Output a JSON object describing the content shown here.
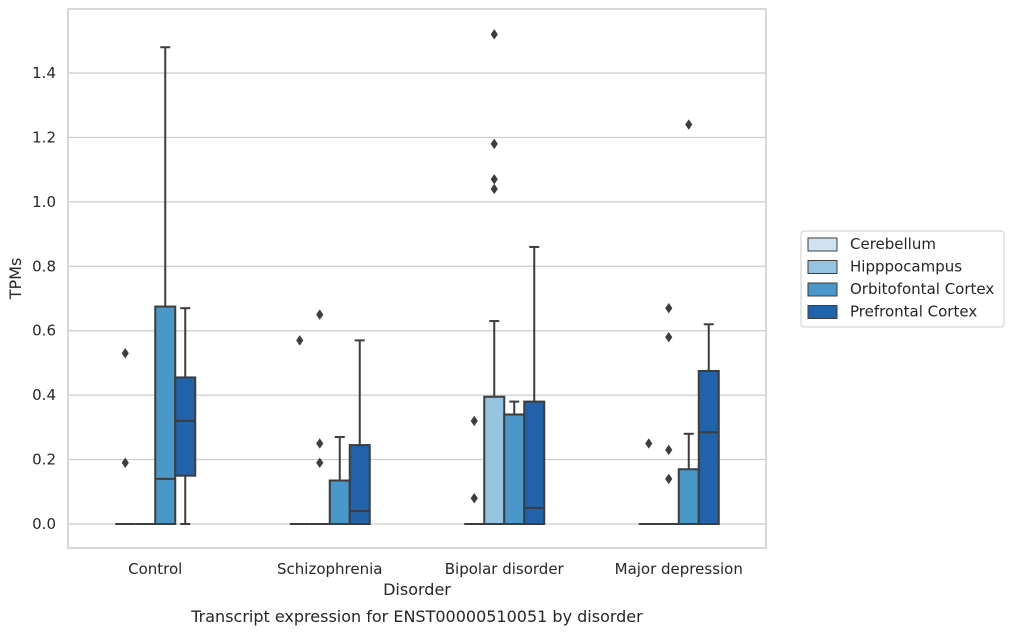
{
  "chart_data": {
    "type": "box",
    "title": "",
    "caption": "Transcript expression for ENST00000510051 by disorder",
    "xlabel": "Disorder",
    "ylabel": "TPMs",
    "ylim": [
      -0.07,
      1.58
    ],
    "yticks": [
      "0.0",
      "0.2",
      "0.4",
      "0.6",
      "0.8",
      "1.0",
      "1.2",
      "1.4"
    ],
    "grid": "horizontal",
    "legend_position": "right",
    "categories": [
      "Control",
      "Schizophrenia",
      "Bipolar disorder",
      "Major depression"
    ],
    "series": [
      {
        "name": "Cerebellum",
        "color": "#d0e1f2",
        "boxes": [
          {
            "q1": 0,
            "median": 0,
            "q3": 0,
            "whislo": 0,
            "whishi": 0,
            "fliers": []
          },
          {
            "q1": 0,
            "median": 0,
            "q3": 0,
            "whislo": 0,
            "whishi": 0,
            "fliers": []
          },
          {
            "q1": 0,
            "median": 0,
            "q3": 0,
            "whislo": 0,
            "whishi": 0,
            "fliers": []
          },
          {
            "q1": 0,
            "median": 0,
            "q3": 0,
            "whislo": 0,
            "whishi": 0,
            "fliers": []
          }
        ]
      },
      {
        "name": "Hipppocampus",
        "color": "#94c4df",
        "boxes": [
          {
            "q1": 0,
            "median": 0,
            "q3": 0,
            "whislo": 0,
            "whishi": 0,
            "fliers": [
              0.19,
              0.53
            ]
          },
          {
            "q1": 0,
            "median": 0,
            "q3": 0,
            "whislo": 0,
            "whishi": 0,
            "fliers": [
              0.57
            ]
          },
          {
            "q1": 0,
            "median": 0,
            "q3": 0.395,
            "whislo": 0,
            "whishi": 0.63,
            "fliers": []
          },
          {
            "q1": 0,
            "median": 0,
            "q3": 0,
            "whislo": 0,
            "whishi": 0,
            "fliers": [
              0.25
            ]
          }
        ]
      },
      {
        "name": "Orbitofontal Cortex",
        "color": "#4a98c9",
        "boxes": [
          {
            "q1": 0,
            "median": 0.14,
            "q3": 0.675,
            "whislo": 0,
            "whishi": 1.48,
            "fliers": []
          },
          {
            "q1": 0,
            "median": 0,
            "q3": 0.135,
            "whislo": 0,
            "whishi": 0.27,
            "fliers": [
              0.19,
              0.25,
              0.65
            ]
          },
          {
            "q1": 0,
            "median": 0.34,
            "q3": 0.34,
            "whislo": 0,
            "whishi": 0.38,
            "fliers": [
              1.07,
              1.52
            ]
          },
          {
            "q1": 0,
            "median": 0,
            "q3": 0.17,
            "whislo": 0,
            "whishi": 0.28,
            "fliers": [
              0.14,
              0.23,
              0.58,
              0.67
            ]
          }
        ]
      },
      {
        "name": "Prefrontal Cortex",
        "color": "#2163aa",
        "boxes": [
          {
            "q1": 0.15,
            "median": 0.32,
            "q3": 0.455,
            "whislo": 0,
            "whishi": 0.67,
            "fliers": []
          },
          {
            "q1": 0,
            "median": 0.04,
            "q3": 0.245,
            "whislo": 0,
            "whishi": 0.57,
            "fliers": []
          },
          {
            "q1": 0,
            "median": 0.05,
            "q3": 0.38,
            "whislo": 0,
            "whishi": 0.86,
            "fliers": []
          },
          {
            "q1": 0,
            "median": 0.285,
            "q3": 0.475,
            "whislo": 0,
            "whishi": 0.62,
            "fliers": [
              1.24
            ]
          }
        ]
      }
    ],
    "extra_fliers": [
      {
        "category": 2,
        "series": 0,
        "values": [
          0.08,
          0.32
        ]
      },
      {
        "category": 2,
        "series": 1,
        "values": [
          1.04,
          1.18
        ]
      }
    ]
  }
}
